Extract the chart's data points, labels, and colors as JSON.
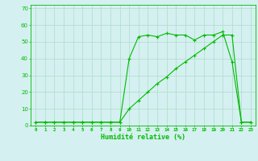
{
  "title": "",
  "xlabel": "Humidité relative (%)",
  "ylabel": "",
  "background_color": "#d5f0f0",
  "grid_color": "#aaddcc",
  "line_color": "#00bb00",
  "marker": "+",
  "xlim": [
    -0.5,
    23.5
  ],
  "ylim": [
    0,
    72
  ],
  "yticks": [
    0,
    10,
    20,
    30,
    40,
    50,
    60,
    70
  ],
  "xticks": [
    0,
    1,
    2,
    3,
    4,
    5,
    6,
    7,
    8,
    9,
    10,
    11,
    12,
    13,
    14,
    15,
    16,
    17,
    18,
    19,
    20,
    21,
    22,
    23
  ],
  "series1_x": [
    0,
    1,
    2,
    3,
    4,
    5,
    6,
    7,
    8,
    9,
    10,
    11,
    12,
    13,
    14,
    15,
    16,
    17,
    18,
    19,
    20,
    21,
    22,
    23
  ],
  "series1_y": [
    2,
    2,
    2,
    2,
    2,
    2,
    2,
    2,
    2,
    2,
    40,
    53,
    54,
    53,
    55,
    54,
    54,
    51,
    54,
    54,
    56,
    38,
    2,
    2
  ],
  "series2_x": [
    0,
    1,
    2,
    3,
    4,
    5,
    6,
    7,
    8,
    9,
    10,
    11,
    12,
    13,
    14,
    15,
    16,
    17,
    18,
    19,
    20,
    21,
    22,
    23
  ],
  "series2_y": [
    2,
    2,
    2,
    2,
    2,
    2,
    2,
    2,
    2,
    2,
    10,
    15,
    20,
    25,
    29,
    34,
    38,
    42,
    46,
    50,
    54,
    54,
    2,
    2
  ]
}
